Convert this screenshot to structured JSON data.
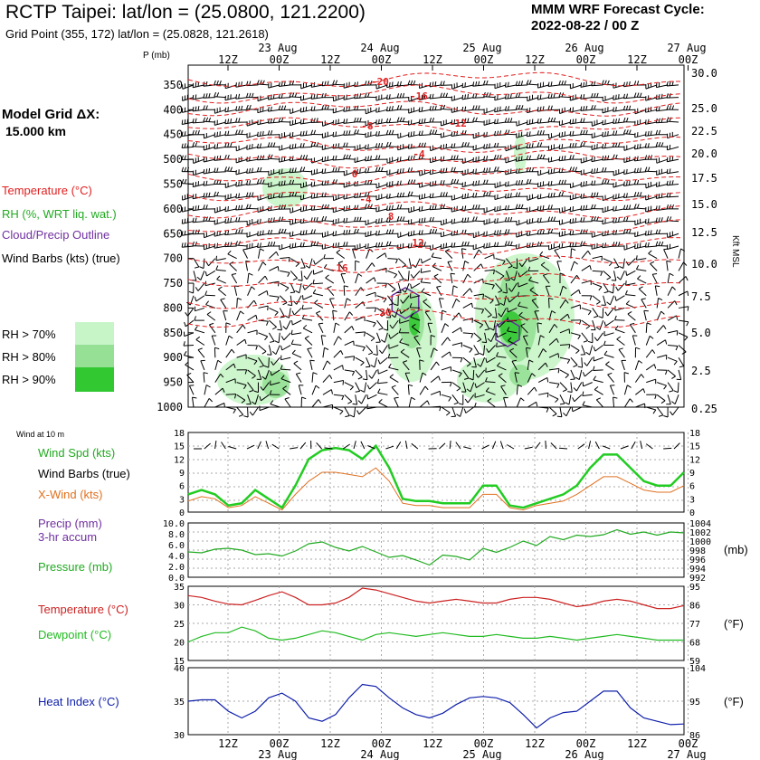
{
  "header": {
    "title": "RCTP Taipei:  lat/lon = (25.0800, 121.2200)",
    "grid_point": "Grid Point (355, 172) lat/lon = (25.0828, 121.2618)",
    "cycle_line1": "MMM WRF Forecast Cycle:",
    "cycle_line2": "2022-08-22 / 00  Z",
    "model_grid_line1": "Model Grid ΔX:",
    "model_grid_line2": "15.000 km"
  },
  "legend": {
    "temperature": "Temperature (°C)",
    "rh": "RH (%, WRT liq. wat.)",
    "cloud": "Cloud/Precip Outline",
    "barbs": "Wind Barbs (kts) (true)",
    "rh70": "RH > 70%",
    "rh80": "RH > 80%",
    "rh90": "RH > 90%",
    "colors": {
      "rh70": "#c8f5c8",
      "rh80": "#96e096",
      "rh90": "#32c832",
      "temp": "#e02020",
      "cloud": "#6a2ca0"
    }
  },
  "time_axis": {
    "top_ticks": [
      "12Z",
      "00Z",
      "12Z",
      "00Z",
      "12Z",
      "00Z",
      "12Z",
      "00Z",
      "12Z",
      "00Z"
    ],
    "days": [
      "23 Aug",
      "24 Aug",
      "25 Aug",
      "26 Aug",
      "27 Aug"
    ]
  },
  "chart_data": [
    {
      "type": "line",
      "title": "",
      "xlabel": "",
      "ylabel": "P (mb)",
      "y_ticks": [
        "350",
        "400",
        "450",
        "500",
        "550",
        "600",
        "650",
        "700",
        "750",
        "800",
        "850",
        "900",
        "950",
        "1000"
      ],
      "right_ticks": [
        "30.0",
        "25.0",
        "22.5",
        "20.0",
        "17.5",
        "15.0",
        "12.5",
        "10.0",
        "7.5",
        "5.0",
        "2.5",
        "0.25"
      ],
      "right_label": "Kft MSL",
      "isotherm_labels": [
        "-20",
        "-16",
        "-12",
        "-8",
        "-4",
        "0",
        "4",
        "8",
        "12",
        "16",
        "20"
      ]
    },
    {
      "type": "line",
      "header": "Wind at 10 m",
      "series": [
        {
          "name": "Wind Spd (kts)",
          "color": "#22cc22",
          "values": [
            4,
            5,
            4,
            1.5,
            2,
            5,
            3,
            1,
            6,
            12,
            14,
            14.5,
            14,
            12,
            15,
            10,
            3,
            2.5,
            2.5,
            2,
            2,
            2,
            6,
            6,
            1.5,
            1,
            2,
            3,
            4,
            6,
            10,
            13,
            13,
            10,
            7,
            6,
            6,
            9
          ]
        },
        {
          "name": "X-Wind (kts)",
          "color": "#e07020",
          "values": [
            2.5,
            3.5,
            3,
            1,
            1.5,
            3.5,
            2,
            0.5,
            4,
            7,
            9,
            9,
            8.5,
            8,
            10,
            7,
            2,
            1.5,
            1.5,
            1,
            1,
            1,
            4,
            4,
            1,
            0.5,
            1.5,
            2,
            2.5,
            4,
            6,
            8,
            8,
            6.5,
            5,
            4.5,
            4.5,
            6
          ]
        }
      ],
      "barbs_label": "Wind Barbs (true)",
      "y_ticks": [
        "18",
        "15",
        "12",
        "9",
        "6",
        "3",
        "0"
      ]
    },
    {
      "type": "line",
      "series": [
        {
          "name": "Precip (mm) 3-hr accum",
          "color": "#7030a0",
          "values": []
        },
        {
          "name": "Pressure (mb)",
          "color": "#22aa22",
          "values": [
            997.6,
            997.4,
            998.2,
            998.4,
            998,
            997,
            997.2,
            996.7,
            997.8,
            999.4,
            999.8,
            998.6,
            997.8,
            998.8,
            997.6,
            996.4,
            996.8,
            995.8,
            994.7,
            996.9,
            996.6,
            995.8,
            998.4,
            997.5,
            998.6,
            1000,
            999,
            1001,
            1000.3,
            1001.3,
            1001,
            1001.4,
            1002.5,
            1001.5,
            1002,
            1001.3,
            1002,
            1001.8
          ]
        }
      ],
      "left_ticks": [
        "10.0",
        "8.0",
        "6.0",
        "4.0",
        "2.0",
        "0.0"
      ],
      "right_ticks": [
        "1004",
        "1002",
        "1000",
        "998",
        "996",
        "994",
        "992"
      ],
      "right_unit": "(mb)"
    },
    {
      "type": "line",
      "series": [
        {
          "name": "Temperature (°C)",
          "color": "#cc2222",
          "values": [
            32.5,
            32,
            31,
            30.2,
            30,
            31.2,
            32.5,
            33.5,
            32,
            30,
            30,
            30.5,
            32,
            34.5,
            34,
            33,
            32,
            31,
            30.5,
            31,
            31.5,
            31,
            30.5,
            30.5,
            31.5,
            32,
            32,
            31.5,
            30.5,
            29.5,
            30,
            31,
            31.5,
            31,
            30,
            29,
            29,
            29.8
          ]
        },
        {
          "name": "Dewpoint (°C)",
          "color": "#22bb22",
          "values": [
            20,
            21.5,
            22.5,
            22.5,
            24,
            23,
            21,
            20.5,
            21,
            22,
            23,
            22.5,
            21.5,
            20.5,
            22,
            22.5,
            22,
            21.5,
            22,
            22.5,
            22,
            21.5,
            21.5,
            22,
            21.5,
            21,
            21,
            21.5,
            21,
            20.5,
            21,
            21.5,
            22,
            21.5,
            21,
            20.5,
            20.5,
            20.5
          ]
        }
      ],
      "left_ticks": [
        "35",
        "30",
        "25",
        "20",
        "15"
      ],
      "right_ticks": [
        "95",
        "86",
        "77",
        "68",
        "59"
      ],
      "right_unit": "(°F)"
    },
    {
      "type": "line",
      "series": [
        {
          "name": "Heat Index (°C)",
          "color": "#1020aa",
          "values": [
            35,
            35.2,
            35.2,
            33.5,
            32.5,
            33.5,
            35.5,
            36.2,
            35,
            32.5,
            32,
            33,
            35.5,
            37.5,
            37.2,
            35.5,
            34,
            33,
            32.5,
            33.2,
            34.5,
            35.5,
            35.7,
            35.5,
            34.8,
            33,
            31,
            32.5,
            33.3,
            33.5,
            35,
            36.5,
            36.5,
            34,
            32.5,
            32,
            31.5,
            31.6
          ]
        }
      ],
      "left_ticks": [
        "40",
        "35",
        "30"
      ],
      "right_ticks": [
        "104",
        "95",
        "86"
      ],
      "right_unit": "(°F)"
    }
  ]
}
